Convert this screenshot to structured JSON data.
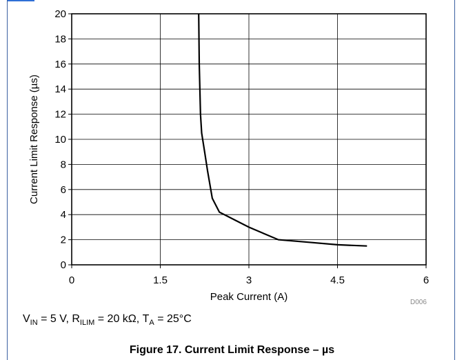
{
  "chart_data": {
    "type": "line",
    "xlabel": "Peak Current (A)",
    "ylabel": "Current Limit Response (µs)",
    "xlim": [
      0,
      6
    ],
    "ylim": [
      0,
      20
    ],
    "x_ticks": [
      "0",
      "1.5",
      "3",
      "4.5",
      "6"
    ],
    "y_ticks": [
      "0",
      "2",
      "4",
      "6",
      "8",
      "10",
      "12",
      "14",
      "16",
      "18",
      "20"
    ],
    "grid": true,
    "series": [
      {
        "x": [
          2.15,
          2.16,
          2.17,
          2.18,
          2.2,
          2.25,
          2.3,
          2.38,
          2.5,
          2.75,
          3.0,
          3.5,
          4.0,
          4.5,
          5.0
        ],
        "y": [
          20,
          16,
          14,
          12,
          10.5,
          9,
          7.5,
          5.3,
          4.2,
          3.6,
          3.0,
          2.0,
          1.8,
          1.6,
          1.5
        ]
      }
    ]
  },
  "figure_code": "D006",
  "conditions": {
    "v_in": "V",
    "v_in_sub": "IN",
    "v_in_val": " = 5 V, ",
    "r_ilim": "R",
    "r_ilim_sub": "ILIM",
    "r_ilim_val": " = 20 kΩ, ",
    "t_a": "T",
    "t_a_sub": "A",
    "t_a_val": " = 25°C"
  },
  "caption": "Figure 17. Current Limit Response – µs"
}
